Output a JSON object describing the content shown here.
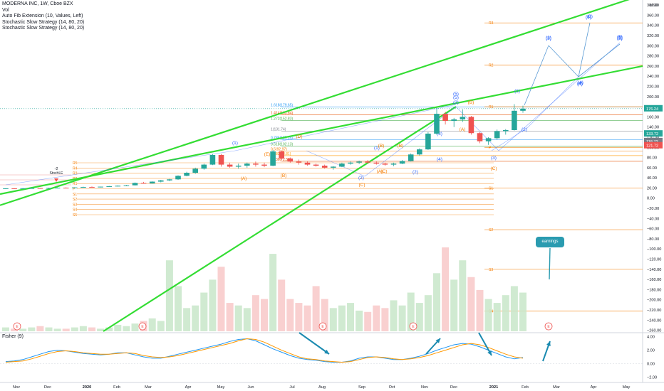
{
  "legend": {
    "title": "MODERNA INC, 1W, Cboe BZX",
    "vol": "Vol",
    "fib": "Auto Fib Extension (10, Values, Left)",
    "stoch1": "Stochastic Slow Strategy (14, 80, 20)",
    "stoch2": "Stochastic Slow Strategy (14, 80, 20)",
    "fisher": "Fisher (9)"
  },
  "annotations": {
    "earnings": "earnings",
    "stoch_le": "StochLE",
    "stoch_num": "-2"
  },
  "colors": {
    "up": "#26a69a",
    "down": "#ef5350",
    "trendline": "#33dd33",
    "wave_blue": "#2962ff",
    "wave_orange": "#f57c00",
    "fisher_blue": "#2196f3",
    "fisher_orange": "#ff9800",
    "vol_up": "#c8e6c9",
    "vol_down": "#f8c8c8",
    "price_tag": "#26a69a"
  },
  "chart_data": [
    {
      "type": "candlestick",
      "title": "MODERNA INC, 1W, Cboe BZX",
      "x_ticks": [
        "Nov",
        "Dec",
        "2020",
        "Feb",
        "Mar",
        "Apr",
        "May",
        "Jun",
        "Jul",
        "Aug",
        "Sep",
        "Oct",
        "Nov",
        "Dec",
        "2021",
        "Feb",
        "Mar",
        "Apr",
        "May"
      ],
      "y_ticks": [
        380,
        360,
        340,
        320,
        300,
        280,
        260,
        240,
        220,
        200,
        180,
        160,
        140,
        120,
        100,
        80,
        60,
        40,
        20,
        0,
        -20,
        -40,
        -60,
        -80,
        -100,
        -120,
        -140,
        -160,
        -180,
        -200,
        -220,
        -240,
        -260
      ],
      "y_tick_labels": [
        "380.00",
        "360.00",
        "340.00",
        "320.00",
        "300.00",
        "280.00",
        "260.00",
        "240.00",
        "220.00",
        "200.00",
        "180.00",
        "160.00",
        "140.00",
        "120.00",
        "100.00",
        "80.00",
        "60.00",
        "40.00",
        "20.00",
        "0.00",
        "−20.00",
        "−40.00",
        "−60.00",
        "−80.00",
        "−100.00",
        "−120.00",
        "−140.00",
        "−160.00",
        "−180.00",
        "−200.00",
        "−220.00",
        "−240.00",
        "−260.00"
      ],
      "y_unit": "USD",
      "ylim": [
        -262,
        390
      ],
      "price_tags": [
        "176.24",
        "133.72",
        "118.72",
        "121.72"
      ],
      "fib_levels": [
        {
          "label": "1.618(179.65)",
          "value": 179.65
        },
        {
          "label": "1.414(163.84)",
          "value": 163.84
        },
        {
          "label": "1.272(152.83)",
          "value": 152.83
        },
        {
          "label": "1(131.74)",
          "value": 131.74
        },
        {
          "label": "0.786(115.15)",
          "value": 115.15
        },
        {
          "label": "0.618(102.13)",
          "value": 102.13
        },
        {
          "label": "0.5(92.97)",
          "value": 92.97
        },
        {
          "label": "0.382(83.81)",
          "value": 83.81
        },
        {
          "label": "0.236(72.53)",
          "value": 72.53
        }
      ],
      "pivot_levels": [
        {
          "label": "R3",
          "value": 345
        },
        {
          "label": "R2",
          "value": 262
        },
        {
          "label": "R1",
          "value": 180
        },
        {
          "label": "P",
          "value": 100
        },
        {
          "label": "S1",
          "value": 20
        },
        {
          "label": "S2",
          "value": -62
        },
        {
          "label": "S3",
          "value": -140
        },
        {
          "label": "S4",
          "value": -222
        }
      ],
      "left_pivot_labels": [
        "R5",
        "R4",
        "R3",
        "R2",
        "R1",
        "P",
        "S1",
        "S2",
        "S3",
        "S4",
        "S5"
      ],
      "candles": [
        [
          19,
          19.5,
          18.8,
          19.2
        ],
        [
          19.2,
          19.6,
          18.9,
          19.0
        ],
        [
          19.0,
          19.8,
          18.7,
          19.5
        ],
        [
          19.5,
          20.2,
          19.1,
          19.8
        ],
        [
          19.8,
          20.1,
          19.2,
          19.4
        ],
        [
          19.4,
          20.4,
          19.0,
          20.1
        ],
        [
          20.1,
          21.0,
          19.8,
          20.6
        ],
        [
          20.6,
          21.2,
          20.0,
          20.3
        ],
        [
          20.3,
          21.5,
          20.0,
          21.1
        ],
        [
          21.1,
          22.5,
          20.8,
          22.1
        ],
        [
          22.1,
          23.0,
          21.4,
          21.8
        ],
        [
          21.8,
          22.8,
          21.2,
          22.6
        ],
        [
          22.6,
          24.0,
          22.2,
          23.5
        ],
        [
          23.5,
          25.0,
          23.0,
          24.4
        ],
        [
          24.4,
          26.0,
          23.8,
          25.3
        ],
        [
          25.3,
          31.0,
          25.0,
          30.0
        ],
        [
          30.0,
          32.0,
          28.5,
          29.0
        ],
        [
          29.0,
          33.0,
          28.6,
          32.5
        ],
        [
          32.5,
          36.0,
          31.0,
          35.0
        ],
        [
          35.0,
          38.0,
          33.5,
          37.0
        ],
        [
          37.0,
          45.0,
          36.0,
          44.0
        ],
        [
          44.0,
          52.0,
          43.0,
          50.0
        ],
        [
          50.0,
          60.0,
          48.0,
          58.0
        ],
        [
          58.0,
          68.0,
          56.0,
          66.0
        ],
        [
          66.0,
          87.0,
          65.0,
          85.0
        ],
        [
          85.0,
          87.0,
          62.0,
          66.0
        ],
        [
          66.0,
          70.0,
          60.0,
          62.0
        ],
        [
          62.0,
          68.0,
          58.0,
          64.0
        ],
        [
          64.0,
          70.0,
          60.0,
          68.0
        ],
        [
          68.0,
          72.0,
          62.0,
          66.0
        ],
        [
          66.0,
          70.0,
          61.0,
          64.0
        ],
        [
          64.0,
          95.0,
          63.0,
          92.0
        ],
        [
          92.0,
          94.0,
          75.0,
          78.0
        ],
        [
          78.0,
          80.0,
          70.0,
          72.0
        ],
        [
          72.0,
          76.0,
          66.0,
          70.0
        ],
        [
          70.0,
          72.0,
          64.0,
          66.0
        ],
        [
          66.0,
          68.0,
          62.0,
          64.0
        ],
        [
          64.0,
          66.0,
          58.0,
          60.0
        ],
        [
          60.0,
          63.0,
          56.0,
          62.0
        ],
        [
          62.0,
          70.0,
          61.0,
          68.0
        ],
        [
          68.0,
          72.0,
          66.0,
          70.0
        ],
        [
          70.0,
          74.0,
          67.0,
          72.0
        ],
        [
          72.0,
          75.0,
          68.0,
          70.0
        ],
        [
          70.0,
          72.0,
          66.0,
          68.0
        ],
        [
          68.0,
          70.0,
          64.0,
          66.0
        ],
        [
          66.0,
          70.0,
          63.0,
          68.0
        ],
        [
          68.0,
          75.0,
          67.0,
          73.0
        ],
        [
          73.0,
          88.0,
          72.0,
          86.0
        ],
        [
          86.0,
          98.0,
          84.0,
          96.0
        ],
        [
          96.0,
          130.0,
          95.0,
          127.0
        ],
        [
          127.0,
          178.0,
          125.0,
          166.0
        ],
        [
          166.0,
          170.0,
          145.0,
          152.0
        ],
        [
          152.0,
          158.0,
          140.0,
          155.0
        ],
        [
          155.0,
          175.0,
          150.0,
          160.0
        ],
        [
          160.0,
          162.0,
          125.0,
          128.0
        ],
        [
          128.0,
          130.0,
          108.0,
          112.0
        ],
        [
          112.0,
          120.0,
          105.0,
          118.0
        ],
        [
          118.0,
          135.0,
          115.0,
          132.0
        ],
        [
          132.0,
          136.0,
          125.0,
          134.0
        ],
        [
          134.0,
          185.0,
          133.0,
          172.0
        ],
        [
          172.0,
          182.0,
          168.0,
          176.2
        ]
      ],
      "volume": [
        3,
        2,
        2,
        3,
        4,
        3,
        2,
        2,
        3,
        4,
        3,
        2,
        3,
        5,
        4,
        6,
        8,
        10,
        8,
        55,
        35,
        18,
        20,
        30,
        40,
        50,
        22,
        20,
        18,
        28,
        25,
        60,
        40,
        25,
        22,
        20,
        35,
        25,
        18,
        20,
        22,
        16,
        15,
        20,
        18,
        24,
        20,
        30,
        22,
        28,
        45,
        65,
        40,
        55,
        42,
        32,
        25,
        22,
        28,
        35,
        30
      ],
      "waves": {
        "blue_labels": [
          "(1)",
          "(2)",
          "(3)",
          "(4)",
          "(5)",
          "(1)",
          "(2)",
          "(3)",
          "(4)",
          "(5)",
          "(1)",
          "(2)",
          "(3)",
          "(4)",
          "(5)",
          "(2)",
          "(3)",
          "(4)",
          "(5)",
          "(3)",
          "(5)",
          "(4)",
          "(5)"
        ],
        "orange_labels": [
          "(A)",
          "(B)",
          "(C)",
          "(A)",
          "(B)",
          "(C)",
          "(B)",
          "(A)",
          "(C)"
        ],
        "orange_other": [
          "(E)",
          "(D)",
          "(B)"
        ]
      },
      "trendlines": [
        {
          "from": [
            "Nov-2019",
            -14
          ],
          "to": [
            "May-2021",
            400
          ]
        },
        {
          "from": [
            "Nov-2019",
            8
          ],
          "to": [
            "May-2021",
            260
          ]
        }
      ]
    },
    {
      "type": "line",
      "title": "Fisher (9)",
      "y_ticks": [
        "4.00",
        "2.00",
        "0.00",
        "−2.00"
      ],
      "ylim": [
        -2.5,
        4.5
      ],
      "series": [
        {
          "values": [
            0.3,
            0.4,
            0.6,
            1.0,
            1.4,
            1.8,
            2.0,
            1.9,
            1.7,
            1.5,
            1.4,
            1.3,
            1.4,
            1.6,
            1.6,
            1.3,
            1.0,
            0.8,
            0.8,
            1.1,
            1.4,
            1.7,
            2.0,
            2.3,
            2.6,
            2.9,
            3.3,
            3.6,
            3.7,
            3.4,
            2.8,
            2.2,
            1.7,
            1.2,
            0.8,
            0.6,
            0.5,
            0.3,
            0.2,
            0.2,
            0.4,
            0.8,
            1.0,
            1.0,
            0.8,
            0.6,
            0.6,
            0.8,
            1.1,
            1.5,
            2.0,
            2.4,
            2.8,
            3.0,
            2.9,
            2.5,
            2.0,
            1.5,
            1.0,
            0.7,
            0.9
          ]
        },
        {
          "values": [
            0.2,
            0.3,
            0.4,
            0.7,
            1.1,
            1.5,
            1.8,
            1.9,
            1.8,
            1.6,
            1.5,
            1.4,
            1.4,
            1.5,
            1.6,
            1.5,
            1.2,
            1.0,
            0.9,
            1.0,
            1.2,
            1.5,
            1.8,
            2.1,
            2.4,
            2.7,
            3.0,
            3.4,
            3.7,
            3.6,
            3.2,
            2.6,
            2.0,
            1.5,
            1.0,
            0.7,
            0.6,
            0.4,
            0.3,
            0.2,
            0.3,
            0.6,
            0.9,
            1.0,
            0.9,
            0.7,
            0.6,
            0.7,
            0.9,
            1.2,
            1.6,
            2.0,
            2.4,
            2.8,
            3.0,
            2.8,
            2.4,
            1.9,
            1.4,
            1.0,
            0.8
          ]
        }
      ]
    }
  ]
}
